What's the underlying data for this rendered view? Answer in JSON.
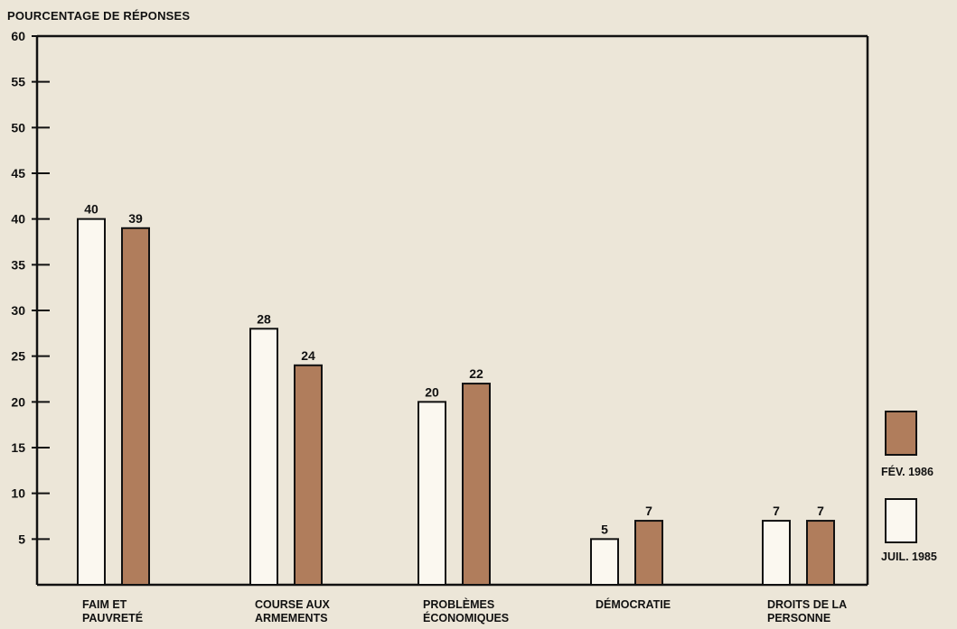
{
  "chart_data": {
    "type": "bar",
    "ylabel": "POURCENTAGE DE RÉPONSES",
    "ylim": [
      0,
      60
    ],
    "yticks": [
      5,
      10,
      15,
      20,
      25,
      30,
      35,
      40,
      45,
      50,
      55,
      60
    ],
    "categories": [
      [
        "FAIM ET",
        "PAUVRETÉ"
      ],
      [
        "COURSE AUX",
        "ARMEMENTS"
      ],
      [
        "PROBLÈMES",
        "ÉCONOMIQUES"
      ],
      [
        "DÉMOCRATIE"
      ],
      [
        "DROITS DE LA",
        "PERSONNE"
      ]
    ],
    "series": [
      {
        "name": "JUIL. 1985",
        "color": "#fbf8f0",
        "values": [
          40,
          28,
          20,
          5,
          7
        ]
      },
      {
        "name": "FÉV. 1986",
        "color": "#b07d5c",
        "values": [
          39,
          24,
          22,
          7,
          7
        ]
      }
    ],
    "legend_position": "right",
    "grid": false
  }
}
